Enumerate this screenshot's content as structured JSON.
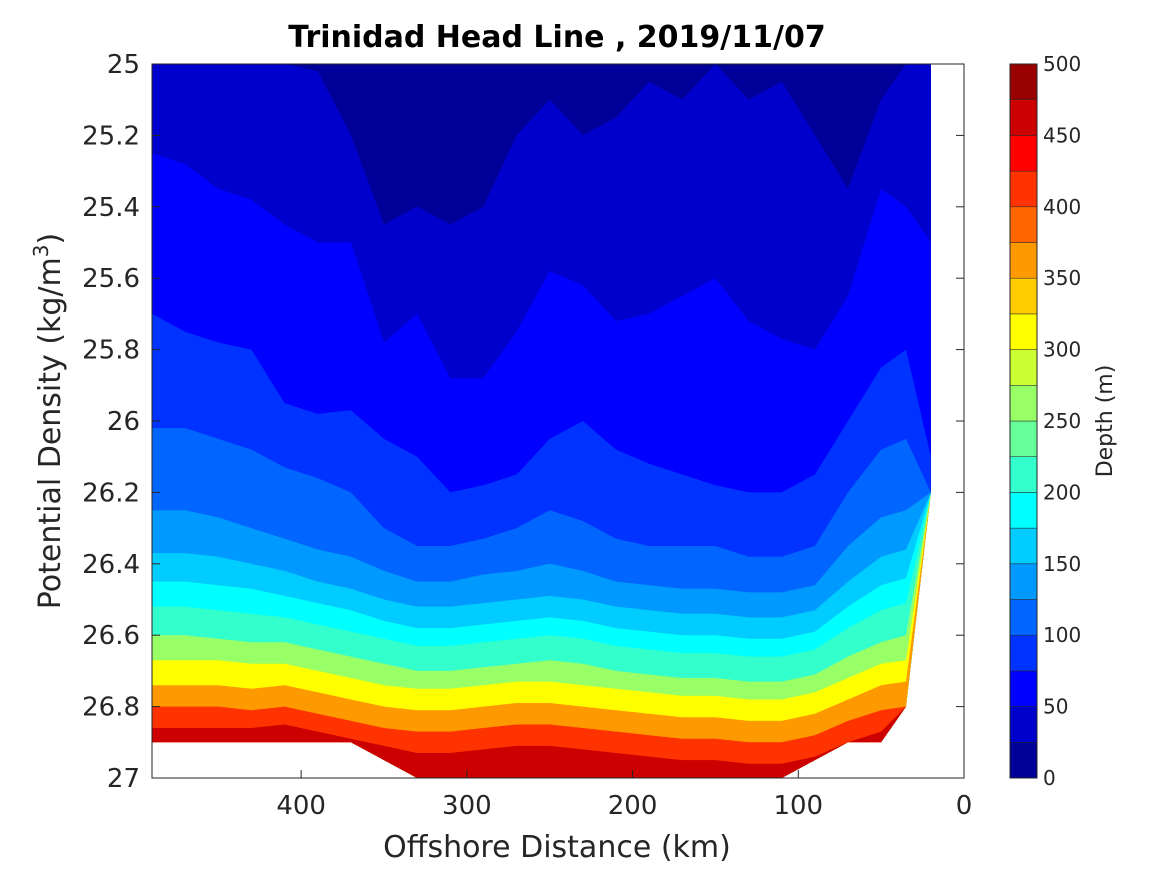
{
  "chart_data": {
    "type": "contour",
    "title": "Trinidad Head Line , 2019/11/07",
    "xlabel": "Offshore Distance (km)",
    "ylabel_main": "Potential Density (kg/m",
    "ylabel_sup": "3",
    "ylabel_close": ")",
    "xlim": [
      490,
      0
    ],
    "x_reversed": true,
    "ylim": [
      25,
      27
    ],
    "y_reversed": true,
    "xticks": [
      400,
      300,
      200,
      100,
      0
    ],
    "xtick_labels": [
      "400",
      "300",
      "200",
      "100",
      "0"
    ],
    "yticks": [
      25,
      25.2,
      25.4,
      25.6,
      25.8,
      26,
      26.2,
      26.4,
      26.6,
      26.8,
      27
    ],
    "ytick_labels": [
      "25",
      "25.2",
      "25.4",
      "25.6",
      "25.8",
      "26",
      "26.2",
      "26.4",
      "26.6",
      "26.8",
      "27"
    ],
    "colorbar": {
      "label": "Depth (m)",
      "range": [
        0,
        500
      ],
      "ticks": [
        0,
        50,
        100,
        150,
        200,
        250,
        300,
        350,
        400,
        450,
        500
      ],
      "tick_labels": [
        "0",
        "50",
        "100",
        "150",
        "200",
        "250",
        "300",
        "350",
        "400",
        "450",
        "500"
      ],
      "colormap": "jet",
      "levels_step": 25
    },
    "x": [
      490,
      470,
      450,
      430,
      410,
      390,
      370,
      350,
      330,
      310,
      290,
      270,
      250,
      230,
      210,
      190,
      170,
      150,
      130,
      110,
      90,
      70,
      50,
      35,
      20
    ],
    "density_bottom": [
      26.9,
      26.9,
      26.9,
      26.9,
      26.9,
      26.9,
      26.9,
      26.95,
      27,
      27,
      27,
      27,
      27,
      27,
      27,
      27,
      27,
      27,
      27,
      27,
      26.95,
      26.9,
      26.9,
      26.8,
      26.2
    ],
    "isopycnal_depth_contours": [
      {
        "depth": 25,
        "density": [
          25.0,
          25.0,
          25.0,
          25.0,
          25.0,
          25.02,
          25.2,
          25.45,
          25.4,
          25.45,
          25.4,
          25.2,
          25.1,
          25.2,
          25.15,
          25.05,
          25.1,
          25.0,
          25.1,
          25.05,
          25.2,
          25.35,
          25.1,
          25.0,
          25.0
        ]
      },
      {
        "depth": 50,
        "density": [
          25.25,
          25.28,
          25.35,
          25.38,
          25.45,
          25.5,
          25.5,
          25.78,
          25.7,
          25.88,
          25.88,
          25.75,
          25.58,
          25.62,
          25.72,
          25.7,
          25.65,
          25.6,
          25.72,
          25.77,
          25.8,
          25.65,
          25.35,
          25.4,
          25.5
        ]
      },
      {
        "depth": 75,
        "density": [
          25.7,
          25.75,
          25.78,
          25.8,
          25.95,
          25.98,
          25.97,
          26.05,
          26.1,
          26.2,
          26.18,
          26.15,
          26.05,
          26.0,
          26.08,
          26.12,
          26.15,
          26.18,
          26.2,
          26.2,
          26.15,
          26.0,
          25.85,
          25.8,
          26.1
        ]
      },
      {
        "depth": 100,
        "density": [
          26.02,
          26.02,
          26.05,
          26.08,
          26.13,
          26.16,
          26.2,
          26.3,
          26.35,
          26.35,
          26.33,
          26.3,
          26.25,
          26.28,
          26.33,
          26.35,
          26.35,
          26.35,
          26.38,
          26.38,
          26.35,
          26.2,
          26.08,
          26.05,
          26.2
        ]
      },
      {
        "depth": 125,
        "density": [
          26.25,
          26.25,
          26.27,
          26.3,
          26.33,
          26.36,
          26.38,
          26.42,
          26.45,
          26.45,
          26.43,
          26.42,
          26.4,
          26.42,
          26.45,
          26.46,
          26.47,
          26.47,
          26.48,
          26.48,
          26.46,
          26.35,
          26.27,
          26.25,
          26.25
        ]
      },
      {
        "depth": 150,
        "density": [
          26.37,
          26.37,
          26.38,
          26.4,
          26.42,
          26.45,
          26.47,
          26.5,
          26.52,
          26.52,
          26.51,
          26.5,
          26.49,
          26.5,
          26.52,
          26.53,
          26.54,
          26.54,
          26.55,
          26.55,
          26.53,
          26.45,
          26.38,
          26.36,
          26.3
        ]
      },
      {
        "depth": 175,
        "density": [
          26.45,
          26.45,
          26.46,
          26.47,
          26.49,
          26.51,
          26.53,
          26.56,
          26.58,
          26.58,
          26.57,
          26.56,
          26.55,
          26.56,
          26.58,
          26.59,
          26.6,
          26.6,
          26.61,
          26.61,
          26.59,
          26.52,
          26.46,
          26.44,
          26.38
        ]
      },
      {
        "depth": 200,
        "density": [
          26.52,
          26.52,
          26.53,
          26.54,
          26.55,
          26.57,
          26.59,
          26.61,
          26.63,
          26.63,
          26.62,
          26.61,
          26.6,
          26.61,
          26.63,
          26.64,
          26.65,
          26.65,
          26.66,
          26.66,
          26.64,
          26.58,
          26.53,
          26.51,
          26.45
        ]
      },
      {
        "depth": 250,
        "density": [
          26.6,
          26.6,
          26.61,
          26.62,
          26.62,
          26.64,
          26.66,
          26.68,
          26.7,
          26.7,
          26.69,
          26.68,
          26.67,
          26.68,
          26.7,
          26.71,
          26.72,
          26.72,
          26.73,
          26.73,
          26.71,
          26.66,
          26.62,
          26.6,
          26.55
        ]
      },
      {
        "depth": 300,
        "density": [
          26.67,
          26.67,
          26.67,
          26.68,
          26.68,
          26.7,
          26.72,
          26.74,
          26.75,
          26.75,
          26.74,
          26.73,
          26.73,
          26.74,
          26.75,
          26.76,
          26.77,
          26.77,
          26.78,
          26.78,
          26.76,
          26.72,
          26.68,
          26.67,
          26.62
        ]
      },
      {
        "depth": 350,
        "density": [
          26.74,
          26.74,
          26.74,
          26.75,
          26.74,
          26.76,
          26.78,
          26.8,
          26.81,
          26.81,
          26.8,
          26.79,
          26.79,
          26.8,
          26.81,
          26.82,
          26.83,
          26.83,
          26.84,
          26.84,
          26.82,
          26.78,
          26.74,
          26.73,
          26.7
        ]
      },
      {
        "depth": 400,
        "density": [
          26.8,
          26.8,
          26.8,
          26.81,
          26.8,
          26.82,
          26.84,
          26.86,
          26.87,
          26.87,
          26.86,
          26.85,
          26.85,
          26.86,
          26.87,
          26.88,
          26.89,
          26.89,
          26.9,
          26.9,
          26.88,
          26.84,
          26.81,
          26.8,
          26.78
        ]
      },
      {
        "depth": 450,
        "density": [
          26.86,
          26.86,
          26.86,
          26.86,
          26.85,
          26.87,
          26.89,
          26.91,
          26.93,
          26.93,
          26.92,
          26.91,
          26.91,
          26.92,
          26.93,
          26.94,
          26.95,
          26.95,
          26.96,
          26.96,
          26.94,
          26.9,
          26.87,
          26.86,
          26.85
        ]
      }
    ]
  }
}
